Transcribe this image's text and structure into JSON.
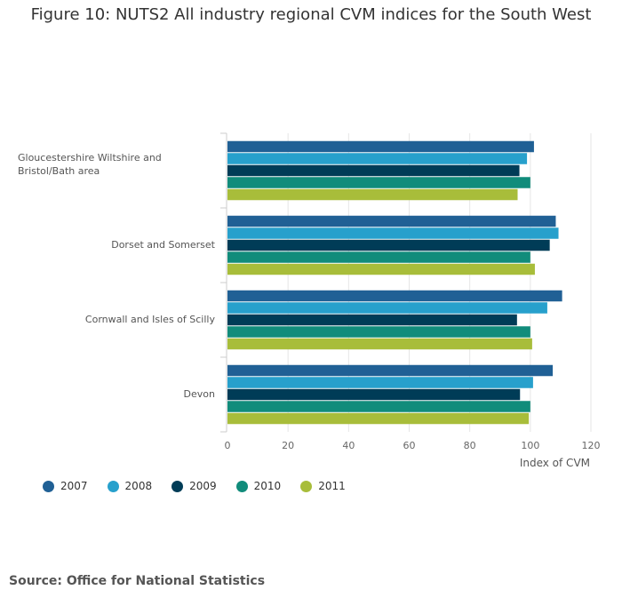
{
  "chart_data": {
    "type": "bar",
    "orientation": "horizontal",
    "title": "Figure 10: NUTS2 All industry regional CVM indices for the South West",
    "categories": [
      "Gloucestershire Wiltshire and Bristol/Bath area",
      "Dorset and Somerset",
      "Cornwall and Isles of Scilly",
      "Devon"
    ],
    "series": [
      {
        "name": "2007",
        "color": "#206095",
        "values": [
          101.2,
          108.4,
          110.5,
          107.4
        ]
      },
      {
        "name": "2008",
        "color": "#27a0cc",
        "values": [
          98.9,
          109.3,
          105.6,
          100.9
        ]
      },
      {
        "name": "2009",
        "color": "#003c57",
        "values": [
          96.4,
          106.4,
          95.6,
          96.6
        ]
      },
      {
        "name": "2010",
        "color": "#118c7b",
        "values": [
          100,
          100,
          100,
          100
        ]
      },
      {
        "name": "2011",
        "color": "#a8bd3a",
        "values": [
          95.8,
          101.5,
          100.6,
          99.5
        ]
      }
    ],
    "xlabel": "Index of CVM",
    "ylabel": "",
    "xlim": [
      0,
      120
    ],
    "xticks": [
      0,
      20,
      40,
      60,
      80,
      100,
      120
    ],
    "grid": "vertical",
    "legend_position": "bottom-left"
  },
  "source_text": "Source: Office for National Statistics"
}
